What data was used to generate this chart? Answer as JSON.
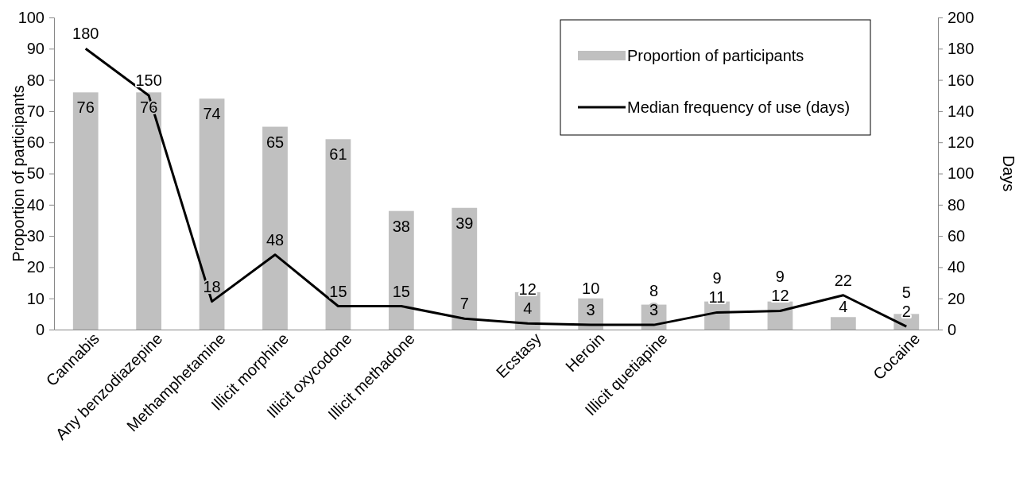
{
  "chart_data": {
    "type": "bar",
    "ylabel": "Proportion of participants",
    "y2label": "Days",
    "categories": [
      "Cannabis",
      "Any benzodiazepine",
      "Methamphetamine",
      "Illicit morphine",
      "Illicit oxycodone",
      "Illicit methadone",
      null,
      "Ecstasy",
      "Heroin",
      "Illicit quetiapine",
      null,
      null,
      null,
      "Cocaine"
    ],
    "series": [
      {
        "name": "Proportion of participants",
        "color": "#c0c0c0",
        "values": [
          76,
          76,
          74,
          65,
          61,
          38,
          39,
          12,
          10,
          8,
          9,
          9,
          4,
          5
        ]
      },
      {
        "name": "Median frequency of use (days)",
        "type": "line",
        "axis": "y2",
        "color": "#000000",
        "values": [
          180,
          150,
          18,
          48,
          15,
          15,
          7,
          4,
          3,
          3,
          11,
          12,
          22,
          2
        ]
      }
    ],
    "ylim": [
      0,
      100
    ],
    "yticks": [
      0,
      10,
      20,
      30,
      40,
      50,
      60,
      70,
      80,
      90,
      100
    ],
    "y2lim": [
      0,
      200
    ],
    "y2ticks": [
      0,
      20,
      40,
      60,
      80,
      100,
      120,
      140,
      160,
      180,
      200
    ],
    "grid": false,
    "legend": "top right",
    "data_labels": true,
    "marker": "none",
    "line_style": "solid"
  }
}
